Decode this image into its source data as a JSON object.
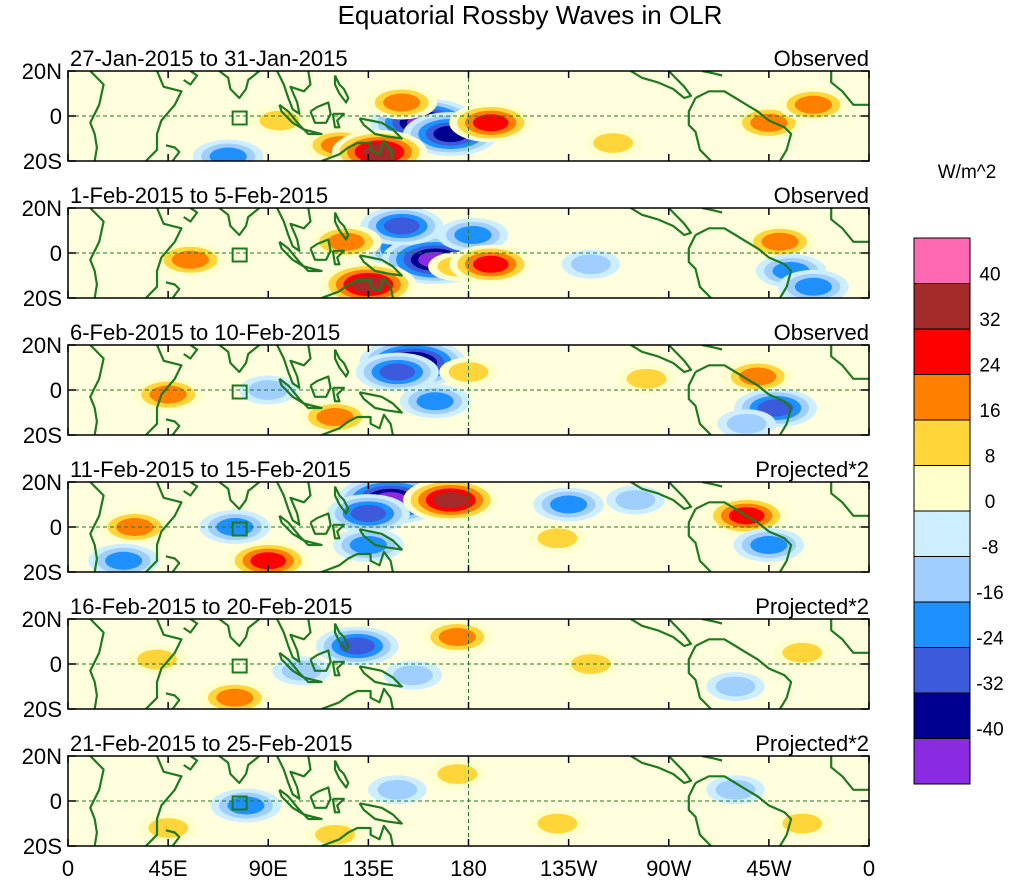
{
  "chart_data": {
    "type": "heatmap",
    "title": "Equatorial Rossby Waves in OLR",
    "variable": "OLR anomaly",
    "units_label": "W/m^2",
    "x_ticks": [
      "0",
      "45E",
      "90E",
      "135E",
      "180",
      "135W",
      "90W",
      "45W",
      "0"
    ],
    "x_tick_values_deg": [
      0,
      45,
      90,
      135,
      180,
      225,
      270,
      315,
      360
    ],
    "y_ticks": [
      "20N",
      "0",
      "20S"
    ],
    "y_tick_values_deg": [
      20,
      0,
      -20
    ],
    "xlim_deg": [
      0,
      360
    ],
    "ylim_deg": [
      -20,
      20
    ],
    "colorbar": {
      "levels": [
        40,
        32,
        24,
        16,
        8,
        0,
        -8,
        -16,
        -24,
        -32,
        -40
      ],
      "colors": [
        "#ff69b4",
        "#a52a2a",
        "#ff0000",
        "#ff7f00",
        "#ffd53a",
        "#ffffcc",
        "#cceeff",
        "#a0cfff",
        "#1e90ff",
        "#3c5adc",
        "#000090",
        "#8a2be2"
      ]
    },
    "panels": [
      {
        "period": "27-Jan-2015 to 31-Jan-2015",
        "label": "Observed",
        "features": [
          {
            "lon": 160,
            "lat": -3,
            "value": -40
          },
          {
            "lon": 172,
            "lat": -8,
            "value": -32
          },
          {
            "lon": 190,
            "lat": -3,
            "value": 24
          },
          {
            "lon": 150,
            "lat": 6,
            "value": 16
          },
          {
            "lon": 122,
            "lat": -13,
            "value": 16
          },
          {
            "lon": 140,
            "lat": -16,
            "value": 32
          },
          {
            "lon": 315,
            "lat": -3,
            "value": 16
          },
          {
            "lon": 335,
            "lat": 5,
            "value": 16
          },
          {
            "lon": 95,
            "lat": -2,
            "value": 8
          },
          {
            "lon": 72,
            "lat": -18,
            "value": -16
          },
          {
            "lon": 245,
            "lat": -12,
            "value": 8
          }
        ]
      },
      {
        "period": "1-Feb-2015 to 5-Feb-2015",
        "label": "Observed",
        "features": [
          {
            "lon": 155,
            "lat": 2,
            "value": -32
          },
          {
            "lon": 165,
            "lat": -3,
            "value": -40
          },
          {
            "lon": 150,
            "lat": 12,
            "value": -24
          },
          {
            "lon": 182,
            "lat": 8,
            "value": -16
          },
          {
            "lon": 125,
            "lat": 5,
            "value": 16
          },
          {
            "lon": 135,
            "lat": -14,
            "value": 32
          },
          {
            "lon": 175,
            "lat": -6,
            "value": 8
          },
          {
            "lon": 190,
            "lat": -5,
            "value": 24
          },
          {
            "lon": 55,
            "lat": -3,
            "value": 16
          },
          {
            "lon": 320,
            "lat": 5,
            "value": 16
          },
          {
            "lon": 325,
            "lat": -8,
            "value": -16
          },
          {
            "lon": 335,
            "lat": -15,
            "value": -16
          },
          {
            "lon": 235,
            "lat": -5,
            "value": -8
          }
        ]
      },
      {
        "period": "6-Feb-2015 to 10-Feb-2015",
        "label": "Observed",
        "features": [
          {
            "lon": 155,
            "lat": 12,
            "value": -40
          },
          {
            "lon": 148,
            "lat": 8,
            "value": -24
          },
          {
            "lon": 165,
            "lat": -5,
            "value": -16
          },
          {
            "lon": 120,
            "lat": -12,
            "value": 16
          },
          {
            "lon": 45,
            "lat": -2,
            "value": 16
          },
          {
            "lon": 310,
            "lat": 6,
            "value": 16
          },
          {
            "lon": 318,
            "lat": -8,
            "value": -24
          },
          {
            "lon": 305,
            "lat": -15,
            "value": -8
          },
          {
            "lon": 180,
            "lat": 8,
            "value": 8
          },
          {
            "lon": 260,
            "lat": 5,
            "value": 8
          },
          {
            "lon": 90,
            "lat": 0,
            "value": -8
          }
        ]
      },
      {
        "period": "11-Feb-2015 to 15-Feb-2015",
        "label": "Projected*2",
        "features": [
          {
            "lon": 145,
            "lat": 12,
            "value": -40
          },
          {
            "lon": 135,
            "lat": 6,
            "value": -24
          },
          {
            "lon": 172,
            "lat": 12,
            "value": 32
          },
          {
            "lon": 90,
            "lat": -15,
            "value": 24
          },
          {
            "lon": 30,
            "lat": 0,
            "value": 16
          },
          {
            "lon": 305,
            "lat": 5,
            "value": 24
          },
          {
            "lon": 75,
            "lat": 0,
            "value": -16
          },
          {
            "lon": 225,
            "lat": 10,
            "value": -16
          },
          {
            "lon": 255,
            "lat": 12,
            "value": -8
          },
          {
            "lon": 135,
            "lat": -8,
            "value": -16
          },
          {
            "lon": 220,
            "lat": -5,
            "value": 8
          },
          {
            "lon": 25,
            "lat": -15,
            "value": -16
          },
          {
            "lon": 315,
            "lat": -8,
            "value": -16
          }
        ]
      },
      {
        "period": "16-Feb-2015 to 20-Feb-2015",
        "label": "Projected*2",
        "features": [
          {
            "lon": 130,
            "lat": 8,
            "value": -24
          },
          {
            "lon": 175,
            "lat": 12,
            "value": 16
          },
          {
            "lon": 75,
            "lat": -15,
            "value": 16
          },
          {
            "lon": 40,
            "lat": 2,
            "value": 8
          },
          {
            "lon": 105,
            "lat": -3,
            "value": -8
          },
          {
            "lon": 155,
            "lat": -5,
            "value": -8
          },
          {
            "lon": 235,
            "lat": 0,
            "value": 8
          },
          {
            "lon": 300,
            "lat": -10,
            "value": -8
          },
          {
            "lon": 330,
            "lat": 5,
            "value": 8
          }
        ]
      },
      {
        "period": "21-Feb-2015 to 25-Feb-2015",
        "label": "Projected*2",
        "features": [
          {
            "lon": 80,
            "lat": -2,
            "value": -16
          },
          {
            "lon": 175,
            "lat": 12,
            "value": 8
          },
          {
            "lon": 148,
            "lat": 5,
            "value": -8
          },
          {
            "lon": 45,
            "lat": -12,
            "value": 8
          },
          {
            "lon": 220,
            "lat": -10,
            "value": 8
          },
          {
            "lon": 300,
            "lat": 5,
            "value": -8
          },
          {
            "lon": 330,
            "lat": -10,
            "value": 8
          },
          {
            "lon": 120,
            "lat": -15,
            "value": 8
          }
        ]
      }
    ]
  }
}
